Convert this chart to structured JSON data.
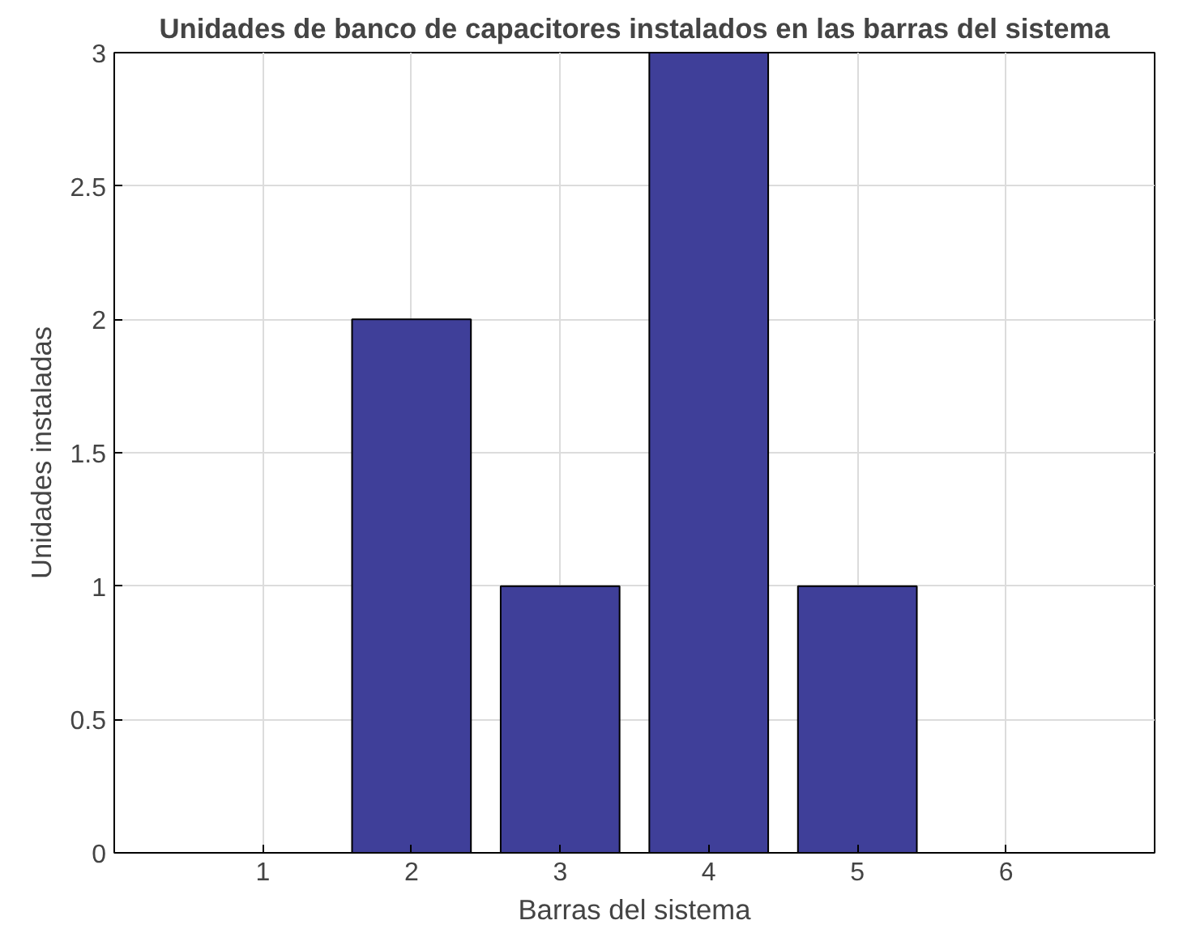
{
  "chart_data": {
    "type": "bar",
    "title": "Unidades de banco de capacitores instalados en las barras del sistema",
    "xlabel": "Barras del sistema",
    "ylabel": "Unidades instaladas",
    "x": [
      1,
      2,
      3,
      4,
      5,
      6
    ],
    "values": [
      0,
      2,
      1,
      3,
      1,
      0
    ],
    "color": "#3f3f99",
    "xlim": [
      0,
      7
    ],
    "xticks": [
      1,
      2,
      3,
      4,
      5,
      6
    ],
    "ylim": [
      0,
      3
    ],
    "yticks": [
      0,
      0.5,
      1,
      1.5,
      2,
      2.5,
      3
    ],
    "grid": true
  }
}
